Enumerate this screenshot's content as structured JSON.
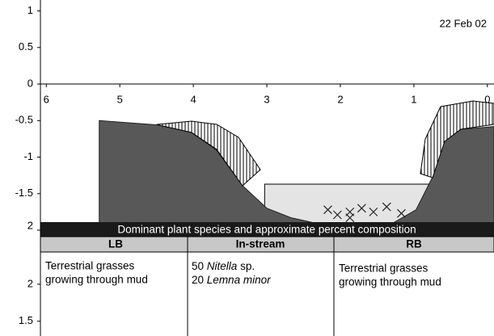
{
  "chart_data": [
    {
      "type": "cross-section",
      "annotation": "22 Feb 02",
      "xlim": [
        6.08,
        -0.09
      ],
      "ylim": [
        -2,
        1.15
      ],
      "xticks": [
        6,
        5,
        4,
        3,
        2,
        1,
        0
      ],
      "yticks": [
        1,
        0.5,
        0,
        -0.5,
        -1,
        -1.5,
        {
          "value": -2,
          "label": "2"
        }
      ],
      "series": [
        {
          "kind": "water",
          "color": "#e4e4e4",
          "x": [
            3.03,
            0.77
          ],
          "values": [
            -1.37,
            -1.37
          ]
        },
        {
          "kind": "bed",
          "color": "#585858",
          "x": [
            5.28,
            4.47,
            4.03,
            3.69,
            3.33,
            3.0,
            2.67,
            1.9,
            1.35,
            0.97,
            0.75,
            0.58,
            0.36,
            0.0,
            -0.09
          ],
          "values": [
            -0.5,
            -0.56,
            -0.66,
            -0.9,
            -1.39,
            -1.7,
            -1.83,
            -2.0,
            -1.94,
            -1.72,
            -1.28,
            -0.78,
            -0.62,
            -0.59,
            -0.58
          ]
        },
        {
          "kind": "plants",
          "color": "#222222",
          "x": [
            2.17,
            2.04,
            1.87,
            1.71,
            1.55,
            1.37,
            1.87,
            1.17
          ],
          "values": [
            -1.72,
            -1.79,
            -1.75,
            -1.7,
            -1.75,
            -1.68,
            -1.83,
            -1.77
          ]
        }
      ]
    },
    {
      "type": "axis",
      "ylim": [
        1.3,
        2.84
      ],
      "yticks": [
        2,
        1.5
      ]
    }
  ],
  "table": {
    "title": "Dominant plant species and approximate percent composition",
    "columns": [
      "LB",
      "In-stream",
      "RB"
    ],
    "lb": [
      "Terrestrial grasses",
      "growing through mud"
    ],
    "instream": [
      [
        "50",
        "Nitella",
        "sp."
      ],
      [
        "20",
        "Lemna minor"
      ]
    ],
    "rb": [
      "Terrestrial grasses",
      "growing through mud"
    ]
  }
}
